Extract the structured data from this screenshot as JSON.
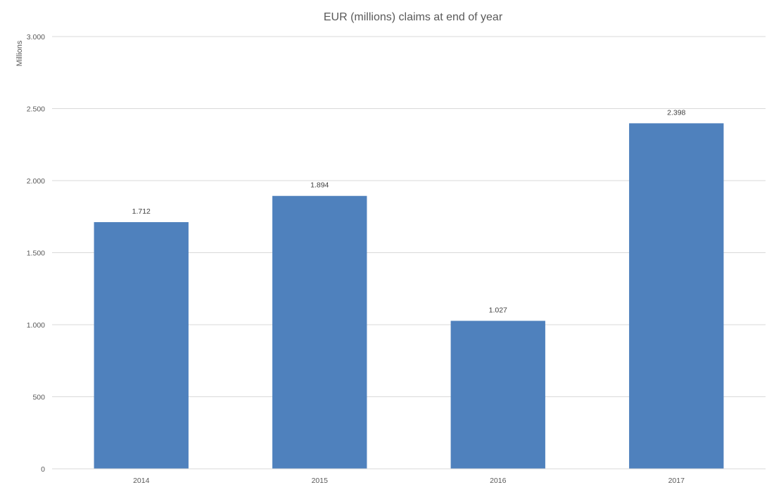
{
  "chart_data": {
    "type": "bar",
    "title": "EUR (millions) claims at end of year",
    "ylabel": "Millions",
    "xlabel": "",
    "categories": [
      "2014",
      "2015",
      "2016",
      "2017"
    ],
    "values": [
      1712,
      1894,
      1027,
      2398
    ],
    "value_labels": [
      "1.712",
      "1.894",
      "1.027",
      "2.398"
    ],
    "ylim": [
      0,
      3000
    ],
    "y_ticks": [
      0,
      500,
      1000,
      1500,
      2000,
      2500,
      3000
    ],
    "y_tick_labels": [
      "0",
      "500",
      "1.000",
      "1.500",
      "2.000",
      "2.500",
      "3.000"
    ],
    "grid": true,
    "legend": "none",
    "bar_color": "#4F81BD"
  }
}
